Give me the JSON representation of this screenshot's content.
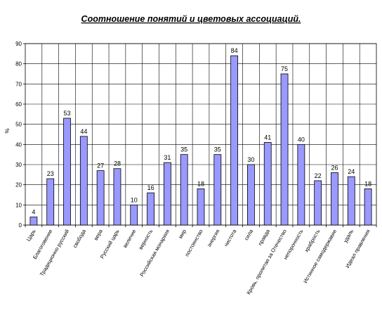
{
  "chart_data": {
    "type": "bar",
    "title": "Соотношение понятий и цветовых ассоциаций.",
    "ylabel": "%",
    "xlabel": "",
    "ylim": [
      0,
      90
    ],
    "yticks": [
      0,
      10,
      20,
      30,
      40,
      50,
      60,
      70,
      80,
      90
    ],
    "grid": true,
    "legend": "none",
    "categories": [
      "Царь",
      "Благоговение",
      "Традиционно русский",
      "свобода",
      "вера",
      "Русский царь",
      "величие",
      "верность",
      "Российская монархия",
      "мир",
      "постоянство",
      "энергия",
      "чистота",
      "сила",
      "правда",
      "Кровь, пролитая за Отечество",
      "непорочность",
      "храбрость",
      "Истинное самодержавие",
      "удаль",
      "Идеал правления"
    ],
    "values": [
      4,
      23,
      53,
      44,
      27,
      28,
      10,
      16,
      31,
      35,
      18,
      35,
      84,
      30,
      41,
      75,
      40,
      22,
      26,
      24,
      18
    ],
    "colors": {
      "bar_fill": "#9999ff",
      "bar_stroke": "#000000",
      "grid": "#000000",
      "plot_bg": "#ffffff"
    }
  }
}
